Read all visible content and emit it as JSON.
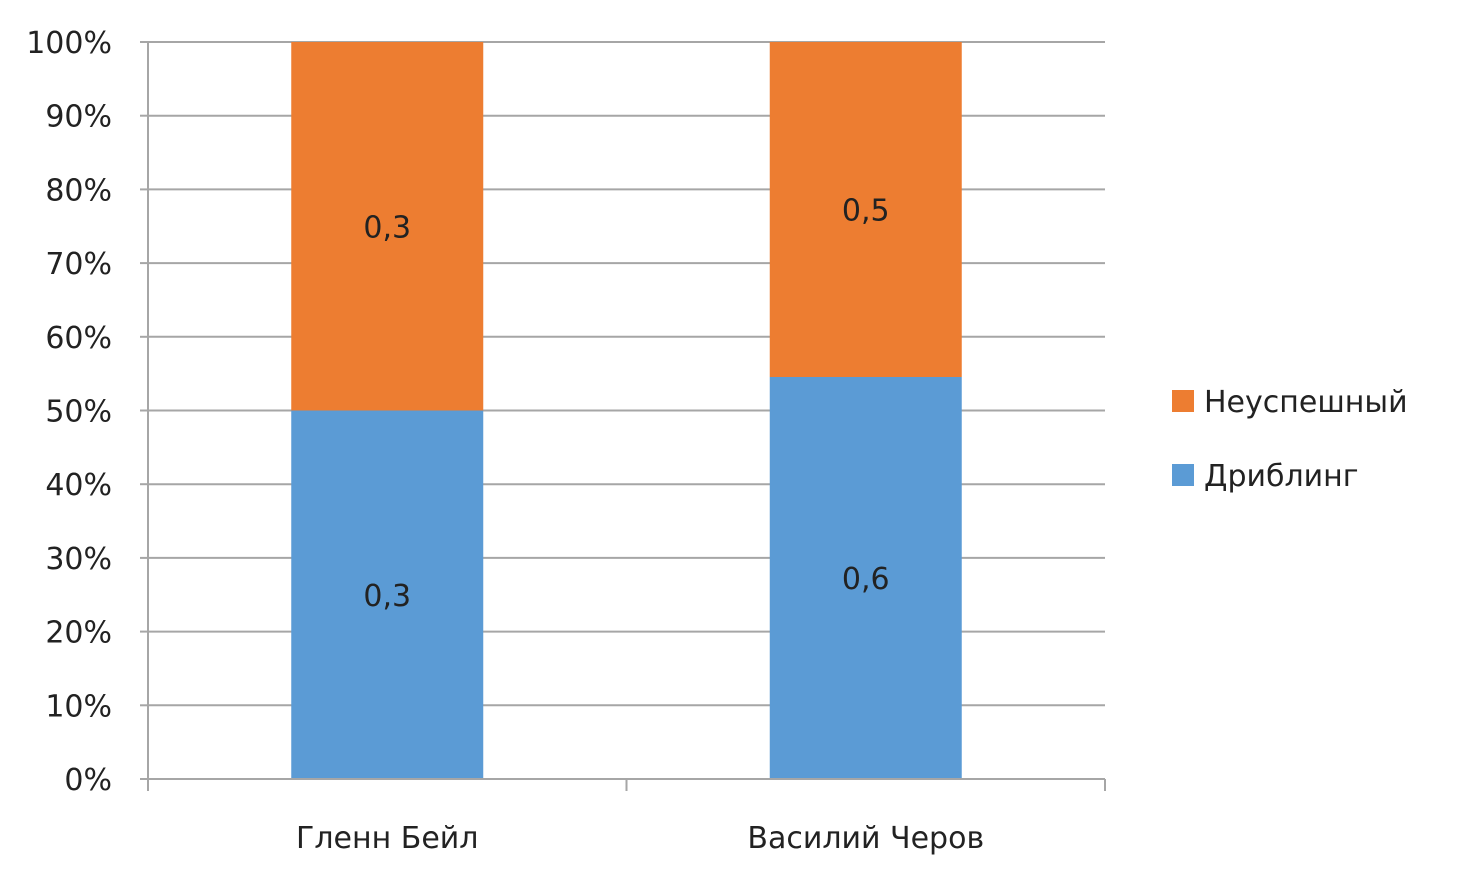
{
  "chart_data": {
    "type": "bar",
    "stacked": "100%",
    "categories": [
      "Гленн Бейл",
      "Василий Черов"
    ],
    "series": [
      {
        "name": "Дриблинг",
        "values": [
          0.3,
          0.6
        ],
        "labels": [
          "0,3",
          "0,6"
        ],
        "color": "#5b9bd5"
      },
      {
        "name": "Неуспешный",
        "values": [
          0.3,
          0.5
        ],
        "labels": [
          "0,3",
          "0,5"
        ],
        "color": "#ed7d31"
      }
    ],
    "y_ticks": [
      "0%",
      "10%",
      "20%",
      "30%",
      "40%",
      "50%",
      "60%",
      "70%",
      "80%",
      "90%",
      "100%"
    ],
    "ylim": [
      0,
      100
    ],
    "grid": true,
    "legend": {
      "position": "right",
      "entries": [
        "Неуспешный",
        "Дриблинг"
      ]
    },
    "colors": {
      "grid": "#a6a6a6",
      "axis": "#a6a6a6",
      "text": "#222222"
    }
  }
}
